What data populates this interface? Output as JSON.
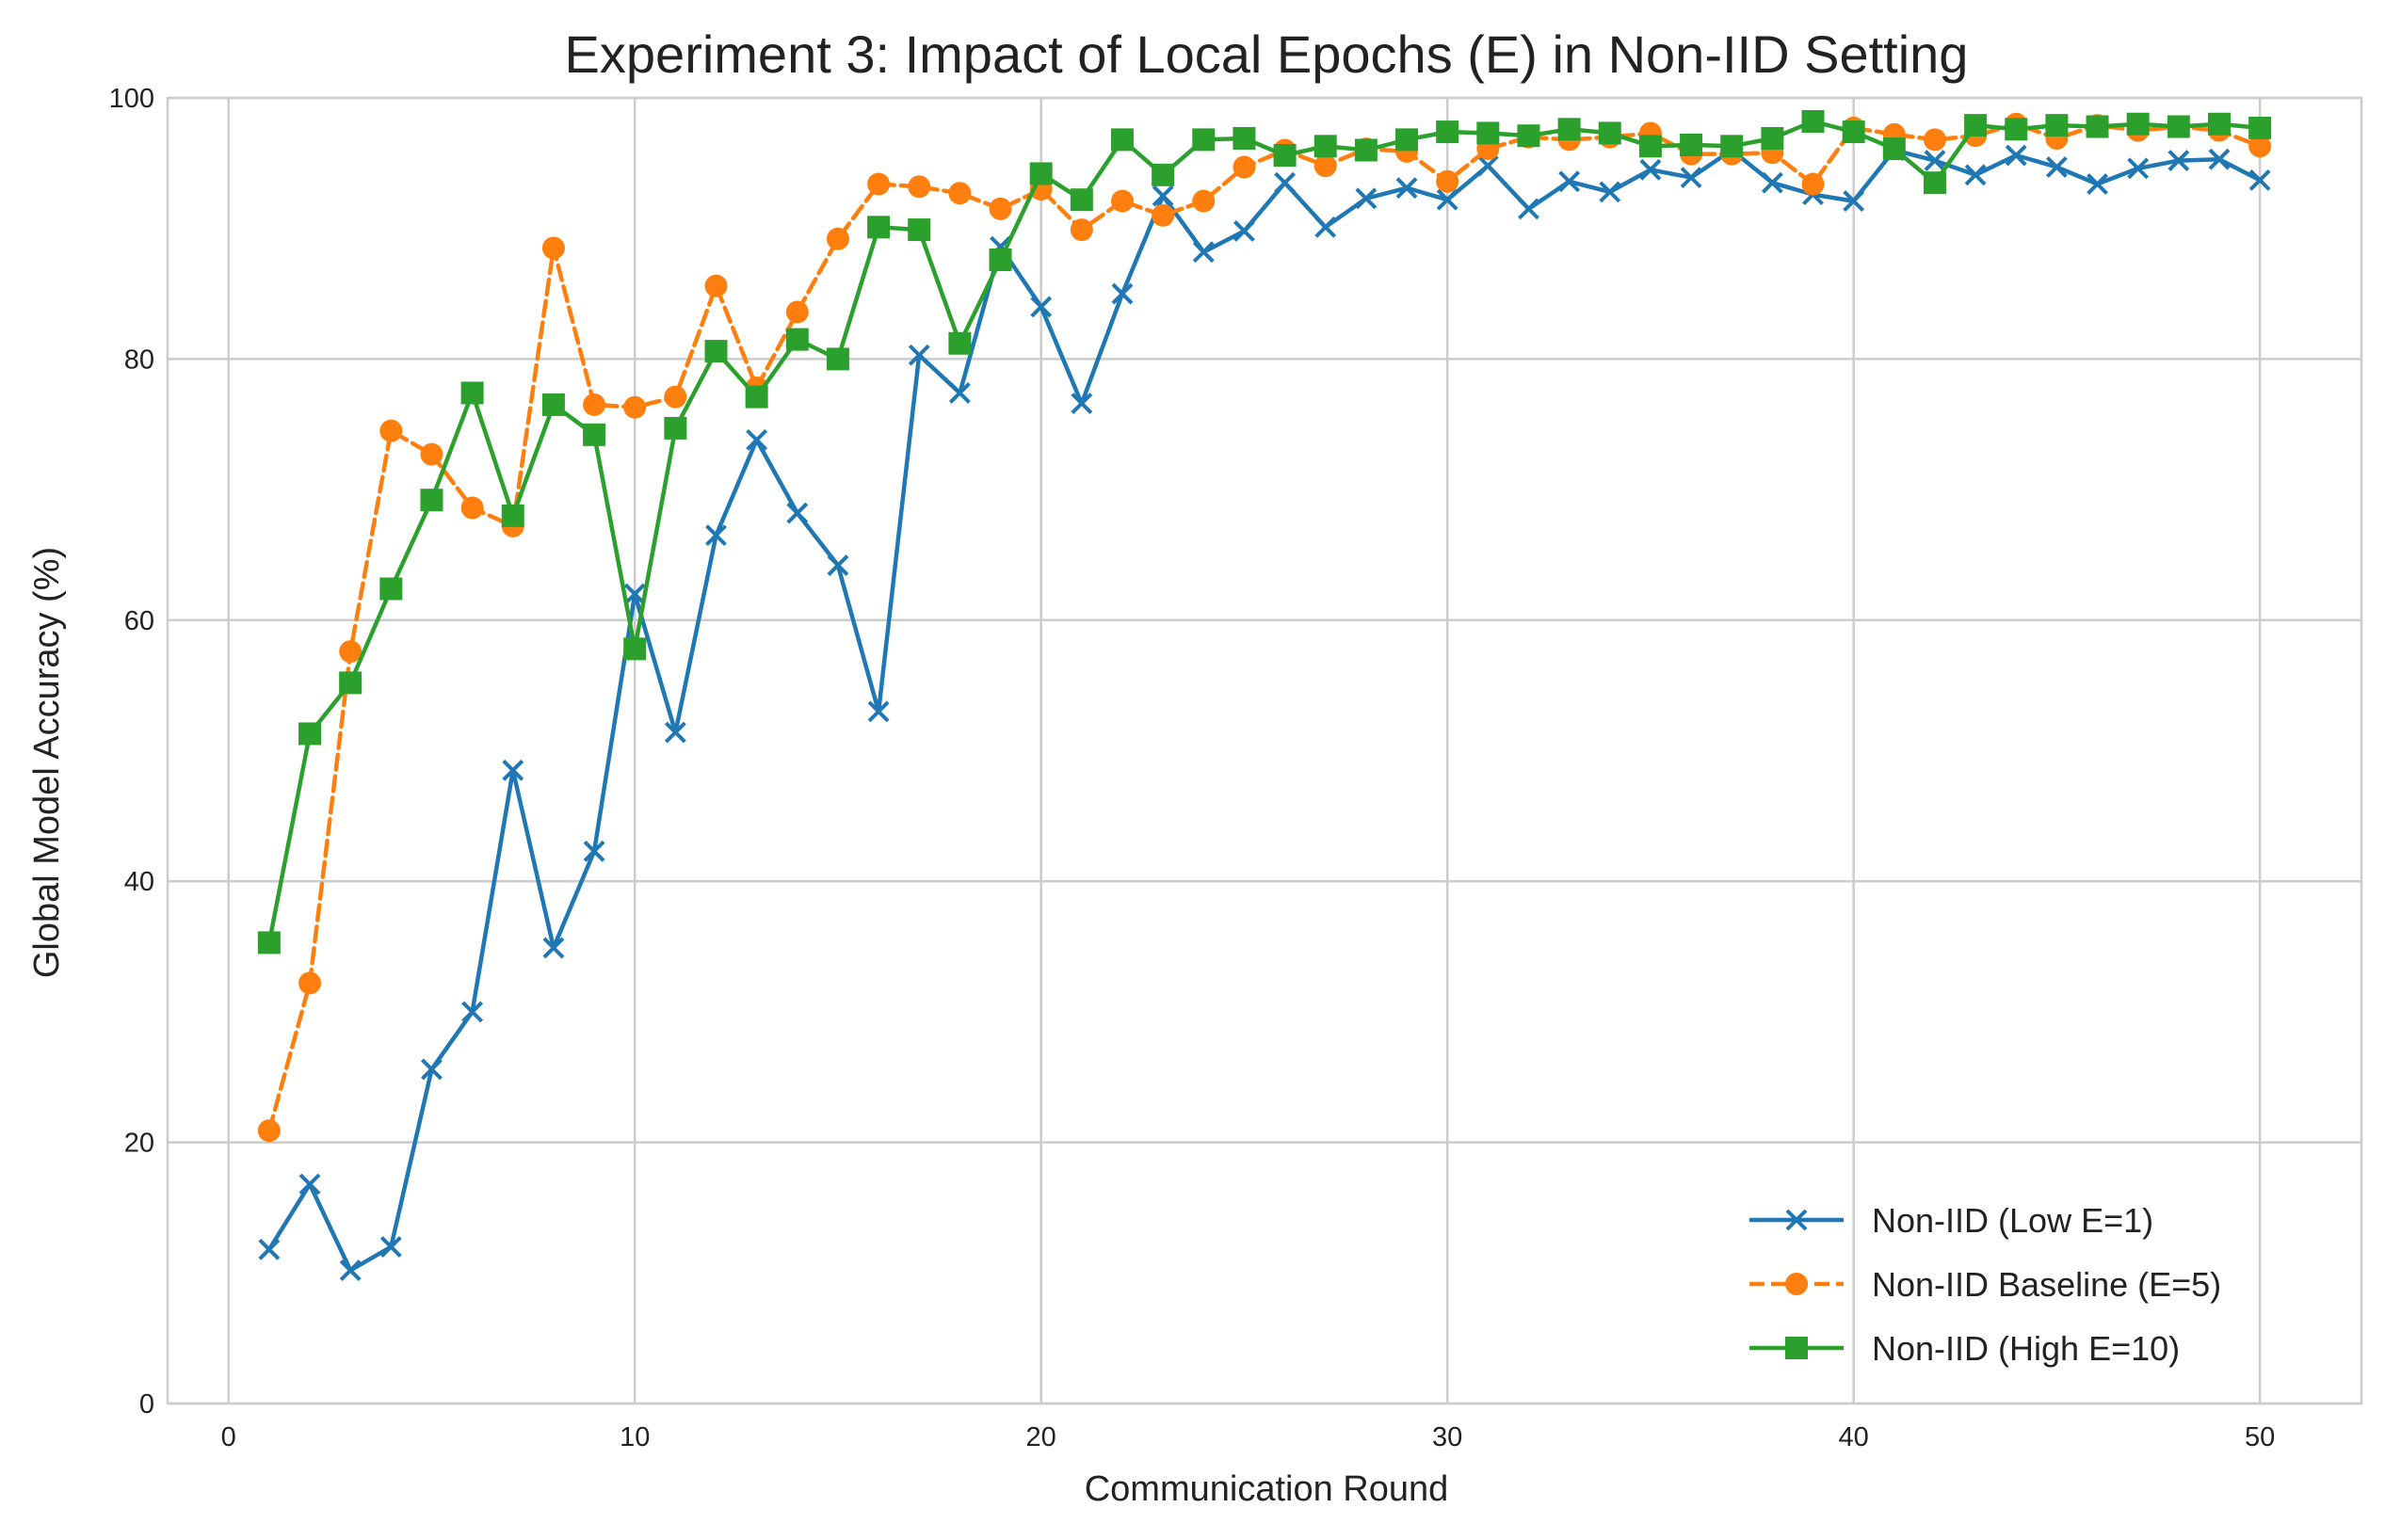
{
  "chart_data": {
    "type": "line",
    "title": "Experiment 3: Impact of Local Epochs (E) in Non-IID Setting",
    "xlabel": "Communication Round",
    "ylabel": "Global Model Accuracy (%)",
    "xlim": [
      -1.5,
      52.5
    ],
    "ylim": [
      0,
      100
    ],
    "xticks": [
      0,
      10,
      20,
      30,
      40,
      50
    ],
    "yticks": [
      0,
      20,
      40,
      60,
      80,
      100
    ],
    "grid": true,
    "legend_position": "lower-right",
    "x": [
      1,
      2,
      3,
      4,
      5,
      6,
      7,
      8,
      9,
      10,
      11,
      12,
      13,
      14,
      15,
      16,
      17,
      18,
      19,
      20,
      21,
      22,
      23,
      24,
      25,
      26,
      27,
      28,
      29,
      30,
      31,
      32,
      33,
      34,
      35,
      36,
      37,
      38,
      39,
      40,
      41,
      42,
      43,
      44,
      45,
      46,
      47,
      48,
      49,
      50
    ],
    "series": [
      {
        "name": "Non-IID (Low E=1)",
        "color": "#1f77b4",
        "marker": "x",
        "linestyle": "solid",
        "values": [
          11.8,
          16.8,
          10.2,
          12.0,
          25.6,
          30.0,
          48.5,
          34.9,
          42.3,
          62.0,
          51.4,
          66.5,
          73.8,
          68.2,
          64.2,
          53.0,
          80.3,
          77.4,
          88.6,
          84.0,
          76.6,
          85.0,
          92.5,
          88.2,
          89.8,
          93.5,
          90.1,
          92.3,
          93.1,
          92.2,
          94.8,
          91.5,
          93.6,
          92.8,
          94.5,
          93.9,
          96.0,
          93.5,
          92.6,
          92.1,
          96.0,
          95.2,
          94.1,
          95.6,
          94.7,
          93.4,
          94.6,
          95.2,
          95.3,
          93.7
        ]
      },
      {
        "name": "Non-IID Baseline (E=5)",
        "color": "#ff7f0e",
        "marker": "o",
        "linestyle": "dashed",
        "values": [
          20.9,
          32.2,
          57.6,
          74.5,
          72.7,
          68.6,
          67.2,
          88.5,
          76.5,
          76.3,
          77.1,
          85.6,
          77.8,
          83.6,
          89.2,
          93.4,
          93.2,
          92.7,
          91.5,
          93.0,
          89.9,
          92.1,
          91.0,
          92.1,
          94.7,
          96.0,
          94.8,
          96.1,
          95.9,
          93.6,
          96.1,
          97.0,
          96.8,
          97.0,
          97.3,
          95.7,
          95.7,
          95.8,
          93.4,
          97.7,
          97.2,
          96.8,
          97.1,
          98.0,
          96.9,
          97.9,
          97.5,
          97.8,
          97.5,
          96.3
        ]
      },
      {
        "name": "Non-IID (High E=10)",
        "color": "#2ca02c",
        "marker": "s",
        "linestyle": "solid",
        "values": [
          35.3,
          51.3,
          55.2,
          62.4,
          69.2,
          77.4,
          68.0,
          76.5,
          74.2,
          57.8,
          74.7,
          80.6,
          77.1,
          81.5,
          80.0,
          90.1,
          89.9,
          81.2,
          87.6,
          94.2,
          92.2,
          96.8,
          94.1,
          96.8,
          96.9,
          95.6,
          96.3,
          96.0,
          96.8,
          97.4,
          97.3,
          97.1,
          97.6,
          97.3,
          96.3,
          96.4,
          96.3,
          96.9,
          98.2,
          97.4,
          96.1,
          93.5,
          97.9,
          97.6,
          97.9,
          97.8,
          98.0,
          97.8,
          98.0,
          97.7
        ]
      }
    ]
  }
}
